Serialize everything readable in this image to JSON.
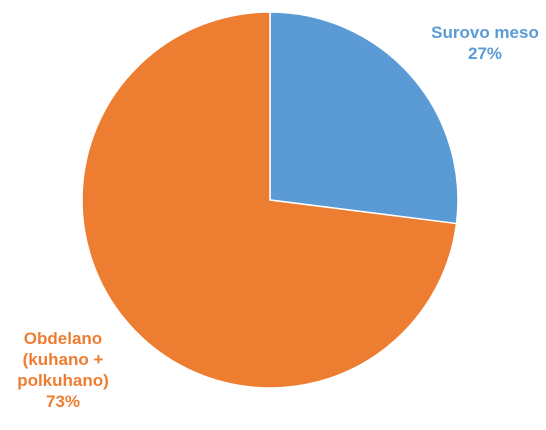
{
  "chart_data": {
    "type": "pie",
    "title": "",
    "categories": [
      "Surovo meso",
      "Obdelano (kuhano + polkuhano)"
    ],
    "values": [
      27,
      73
    ],
    "unit": "%",
    "colors": [
      "#5b9bd5",
      "#ed7d31"
    ],
    "start_angle_deg": 0,
    "direction": "clockwise",
    "legend": "none",
    "labels": [
      {
        "lines": [
          "Surovo meso"
        ],
        "value_text": "27%",
        "color": "#5b9bd5"
      },
      {
        "lines": [
          "Obdelano",
          "(kuhano +",
          "polkuhano)"
        ],
        "value_text": "73%",
        "color": "#ed7d31"
      }
    ]
  }
}
